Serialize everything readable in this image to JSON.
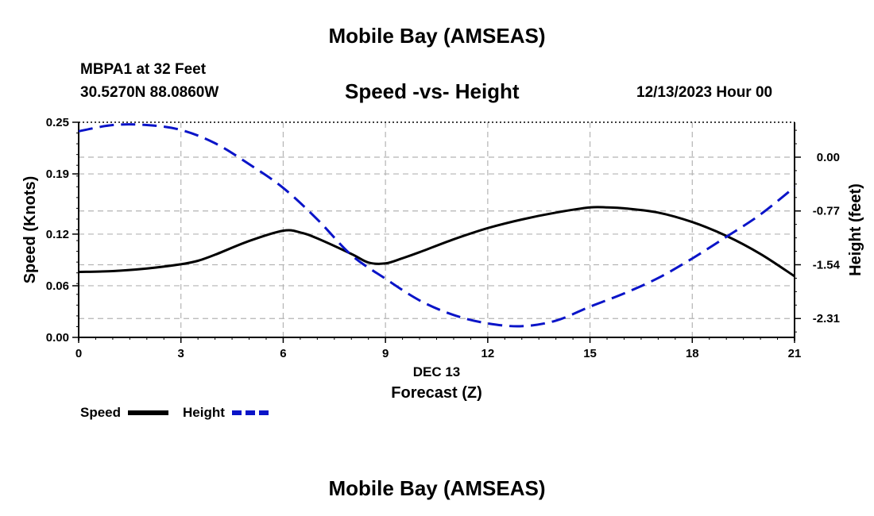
{
  "header": {
    "title_top": "Mobile Bay (AMSEAS)",
    "station": "MBPA1 at 32 Feet",
    "coords": "30.5270N  88.0860W",
    "datetime": "12/13/2023 Hour 00",
    "title_bottom": "Mobile Bay (AMSEAS)"
  },
  "colors": {
    "speed": "#000000",
    "height": "#0a14c8",
    "grid": "#b4b4b4"
  },
  "chart_data": {
    "type": "line",
    "title": "Speed -vs- Height",
    "xlabel": "Forecast (Z)",
    "xlabel_date": "DEC 13",
    "ylabel_left": "Speed (Knots)",
    "ylabel_right": "Height (feet)",
    "xlim": [
      0,
      21
    ],
    "ylim_left": [
      0,
      0.25
    ],
    "ylim_right": [
      -2.58,
      0.5
    ],
    "x_ticks": [
      0,
      3,
      6,
      9,
      12,
      15,
      18,
      21
    ],
    "x_tick_labels": [
      "0",
      "3",
      "6",
      "9",
      "12",
      "15",
      "18",
      "21"
    ],
    "y_left_ticks": [
      0.0,
      0.06,
      0.12,
      0.19,
      0.25
    ],
    "y_left_tick_labels": [
      "0.00",
      "0.06",
      "0.12",
      "0.19",
      "0.25"
    ],
    "y_right_ticks": [
      0.0,
      -0.77,
      -1.54,
      -2.31
    ],
    "y_right_tick_labels": [
      "0.00",
      "-0.77",
      "-1.54",
      "-2.31"
    ],
    "grid": true,
    "legend_position": "bottom-left",
    "series": [
      {
        "name": "Speed",
        "axis": "left",
        "style": "solid",
        "x": [
          0,
          1,
          2,
          3,
          3.5,
          4,
          5,
          6,
          6.5,
          7,
          8,
          8.5,
          9,
          9.5,
          10,
          11,
          12,
          13,
          14,
          15,
          15.5,
          16,
          17,
          18,
          19,
          20,
          21
        ],
        "values": [
          0.076,
          0.077,
          0.08,
          0.085,
          0.089,
          0.096,
          0.112,
          0.124,
          0.122,
          0.115,
          0.097,
          0.087,
          0.086,
          0.092,
          0.099,
          0.114,
          0.127,
          0.137,
          0.145,
          0.151,
          0.151,
          0.15,
          0.145,
          0.134,
          0.118,
          0.097,
          0.071
        ]
      },
      {
        "name": "Height",
        "axis": "right",
        "style": "dashed",
        "x": [
          0,
          1,
          2,
          3,
          4,
          5,
          6,
          7,
          8,
          9,
          10,
          11,
          12,
          13,
          14,
          15,
          16,
          17,
          18,
          19,
          20,
          21
        ],
        "values": [
          0.37,
          0.46,
          0.46,
          0.39,
          0.2,
          -0.1,
          -0.44,
          -0.89,
          -1.4,
          -1.74,
          -2.05,
          -2.26,
          -2.38,
          -2.42,
          -2.34,
          -2.14,
          -1.95,
          -1.73,
          -1.45,
          -1.14,
          -0.82,
          -0.43
        ]
      }
    ]
  }
}
